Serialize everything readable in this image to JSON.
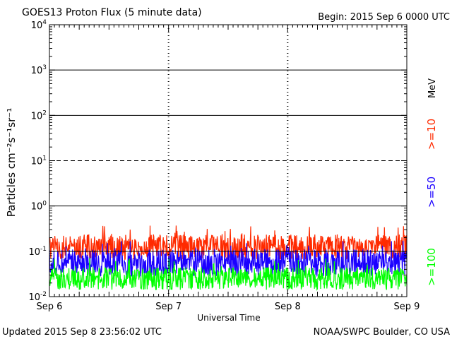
{
  "chart_data": {
    "type": "line",
    "title": "GOES13 Proton Flux (5 minute data)",
    "begin_label": "Begin: 2015 Sep 6 0000 UTC",
    "xlabel": "Universal Time",
    "ylabel": "Particles cm⁻²s⁻¹sr⁻¹",
    "y_scale": "log",
    "ylim": [
      0.01,
      10000
    ],
    "x_days": [
      "Sep 6",
      "Sep 7",
      "Sep 8",
      "Sep 9"
    ],
    "y_ticks": [
      {
        "base": "10",
        "exp": "4",
        "value": 10000
      },
      {
        "base": "10",
        "exp": "3",
        "value": 1000
      },
      {
        "base": "10",
        "exp": "2",
        "value": 100
      },
      {
        "base": "10",
        "exp": "1",
        "value": 10
      },
      {
        "base": "10",
        "exp": "0",
        "value": 1
      },
      {
        "base": "10",
        "exp": "-1",
        "value": 0.1
      },
      {
        "base": "10",
        "exp": "-2",
        "value": 0.01
      }
    ],
    "thresholds": [
      {
        "value": 1000,
        "style": "solid"
      },
      {
        "value": 100,
        "style": "solid"
      },
      {
        "value": 10,
        "style": "dashed"
      },
      {
        "value": 1,
        "style": "solid"
      },
      {
        "value": 0.1,
        "style": "solid"
      }
    ],
    "grid": "dotted vertical at day boundaries",
    "legend_placement": "right, vertical",
    "legend_unit": "MeV",
    "series": [
      {
        "name": ">=10",
        "color": "#ff2a00",
        "baseline": 0.125,
        "spread": 0.28
      },
      {
        "name": ">=50",
        "color": "#1a00ff",
        "baseline": 0.055,
        "spread": 0.3
      },
      {
        "name": ">=100",
        "color": "#00ff00",
        "baseline": 0.025,
        "spread": 0.25
      }
    ]
  },
  "footer": {
    "updated": "Updated 2015 Sep  8 23:56:02 UTC",
    "credit": "NOAA/SWPC Boulder, CO USA"
  }
}
